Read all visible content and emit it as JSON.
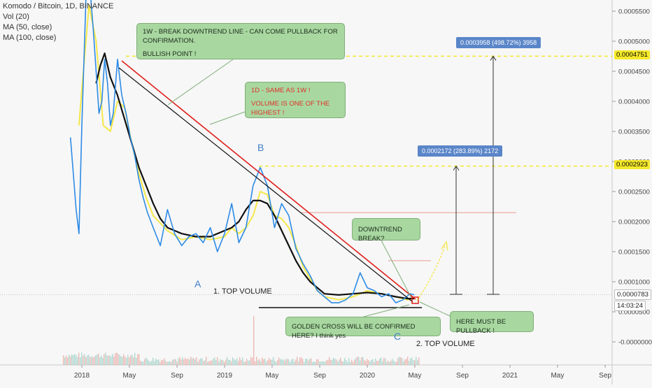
{
  "legend": {
    "title": "Komodo / Bitcoin, 1D, BINANCE",
    "indicators": [
      "Vol (20)",
      "MA (50, close)",
      "MA (100, close)"
    ]
  },
  "chart_data": {
    "type": "line",
    "title": "Komodo / Bitcoin, 1D, BINANCE",
    "x_ticks": [
      "2018",
      "May",
      "Sep",
      "2019",
      "May",
      "Sep",
      "2020",
      "May",
      "Sep",
      "2021",
      "May",
      "Sep"
    ],
    "y_ticks": [
      "0.0005500",
      "0.0005000",
      "0.0004500",
      "0.0004000",
      "0.0003500",
      "0.0003000",
      "0.0002500",
      "0.0002000",
      "0.0001500",
      "0.0001000",
      "0.0000500",
      "-0.0000000"
    ],
    "ylim": [
      -1e-05,
      0.00058
    ],
    "series": [
      {
        "name": "Price",
        "color": "#2e8be6",
        "x": [
          2017.92,
          2017.94,
          2017.96,
          2017.98,
          2018.0,
          2018.03,
          2018.06,
          2018.08,
          2018.1,
          2018.12,
          2018.14,
          2018.16,
          2018.18,
          2018.2,
          2018.22,
          2018.25,
          2018.28,
          2018.31,
          2018.34,
          2018.37,
          2018.4,
          2018.43,
          2018.46,
          2018.5,
          2018.55,
          2018.6,
          2018.65,
          2018.7,
          2018.75,
          2018.8,
          2018.85,
          2018.9,
          2018.95,
          2019.0,
          2019.05,
          2019.1,
          2019.15,
          2019.2,
          2019.25,
          2019.3,
          2019.35,
          2019.4,
          2019.45,
          2019.5,
          2019.55,
          2019.6,
          2019.65,
          2019.7,
          2019.75,
          2019.8,
          2019.85,
          2019.9,
          2019.95,
          2020.0,
          2020.05,
          2020.1,
          2020.15,
          2020.2,
          2020.25,
          2020.3,
          2020.33
        ],
        "y": [
          0.00034,
          0.00028,
          0.00022,
          0.00018,
          0.00036,
          0.00058,
          0.00058,
          0.00052,
          0.00045,
          0.00038,
          0.0004,
          0.00047,
          0.00043,
          0.00036,
          0.00038,
          0.00047,
          0.00041,
          0.00038,
          0.00034,
          0.00031,
          0.00027,
          0.00024,
          0.000215,
          0.00019,
          0.00016,
          0.00022,
          0.00018,
          0.00016,
          0.000175,
          0.00018,
          0.000165,
          0.00019,
          0.00015,
          0.00018,
          0.00023,
          0.000165,
          0.00019,
          0.00026,
          0.00029,
          0.00026,
          0.00019,
          0.00023,
          0.00021,
          0.000155,
          0.00013,
          0.00011,
          8.5e-05,
          7.5e-05,
          6.5e-05,
          6.5e-05,
          7e-05,
          8e-05,
          0.000115,
          9e-05,
          8.5e-05,
          7.5e-05,
          8e-05,
          6.5e-05,
          7e-05,
          8e-05,
          7.8e-05
        ]
      },
      {
        "name": "MA (50, close)",
        "color": "#f5e84a",
        "x": [
          2017.98,
          2018.0,
          2018.05,
          2018.1,
          2018.15,
          2018.2,
          2018.25,
          2018.3,
          2018.35,
          2018.4,
          2018.45,
          2018.5,
          2018.6,
          2018.7,
          2018.8,
          2018.9,
          2019.0,
          2019.05,
          2019.1,
          2019.15,
          2019.2,
          2019.25,
          2019.3,
          2019.35,
          2019.4,
          2019.45,
          2019.5,
          2019.55,
          2019.6,
          2019.65,
          2019.7,
          2019.8,
          2019.9,
          2020.0,
          2020.1,
          2020.2,
          2020.28,
          2020.33
        ],
        "y": [
          0.00036,
          0.00042,
          0.00056,
          0.0005,
          0.00036,
          0.00035,
          0.0004,
          0.00039,
          0.00033,
          0.00028,
          0.00024,
          0.00021,
          0.000185,
          0.00017,
          0.000175,
          0.00017,
          0.000175,
          0.00019,
          0.00018,
          0.00019,
          0.00021,
          0.00025,
          0.000245,
          0.00021,
          0.000205,
          0.00019,
          0.00016,
          0.000125,
          0.000105,
          8.5e-05,
          7.5e-05,
          7e-05,
          7.5e-05,
          8.5e-05,
          8e-05,
          7.5e-05,
          7e-05,
          7.2e-05
        ]
      },
      {
        "name": "MA (100, close)",
        "color": "#111111",
        "x": [
          2018.1,
          2018.13,
          2018.16,
          2018.2,
          2018.25,
          2018.3,
          2018.35,
          2018.4,
          2018.45,
          2018.5,
          2018.55,
          2018.6,
          2018.65,
          2018.7,
          2018.8,
          2018.9,
          2019.0,
          2019.05,
          2019.1,
          2019.15,
          2019.2,
          2019.25,
          2019.3,
          2019.35,
          2019.4,
          2019.45,
          2019.5,
          2019.55,
          2019.6,
          2019.65,
          2019.7,
          2019.8,
          2019.9,
          2020.0,
          2020.1,
          2020.2,
          2020.28,
          2020.33
        ],
        "y": [
          0.00043,
          0.00046,
          0.00048,
          0.00044,
          0.00041,
          0.00037,
          0.00033,
          0.00029,
          0.00026,
          0.00023,
          0.000205,
          0.00019,
          0.000185,
          0.00018,
          0.000175,
          0.000175,
          0.000185,
          0.00019,
          0.0002,
          0.00022,
          0.000235,
          0.000235,
          0.00023,
          0.00021,
          0.000185,
          0.00016,
          0.000135,
          0.000115,
          0.0001,
          9e-05,
          8e-05,
          7.8e-05,
          8e-05,
          8.2e-05,
          8e-05,
          7.5e-05,
          7.2e-05,
          7.2e-05
        ]
      }
    ],
    "annotations": {
      "note_1w": [
        "1W - BREAK DOWNTREND LINE - CAN COME PULLBACK FOR CONFIRMATION.",
        "BULLISH POINT !"
      ],
      "note_1d": [
        "1D - SAME AS 1W !",
        "VOLUME IS ONE OF THE HIGHEST !"
      ],
      "note_break": "DOWNTREND BREAK?",
      "note_pullback": "HERE MUST BE PULLBACK !",
      "note_golden": "GOLDEN CROSS WILL BE CONFIRMED HERE? I think yes",
      "label_a": "A",
      "label_b": "B",
      "label_c": "C",
      "label_vol1": "1. TOP VOLUME",
      "label_vol2": "2. TOP VOLUME",
      "measure_top": "0.0003958 (498.72%) 3958",
      "measure_mid": "0.0002172 (283.89%) 2172",
      "price_4751": "0.0004751",
      "price_2923": "0.0002923",
      "price_last": "0.0000783",
      "countdown": "14:03:24"
    },
    "levels": [
      0.0004751,
      0.0002923,
      7.83e-05
    ]
  },
  "colors": {
    "price": "#2e8be6",
    "ma50": "#f5e84a",
    "ma100": "#111111",
    "trend_red": "#e0201c",
    "dashed_level": "#f3e82b",
    "note_bg": "#a8d8a0"
  }
}
